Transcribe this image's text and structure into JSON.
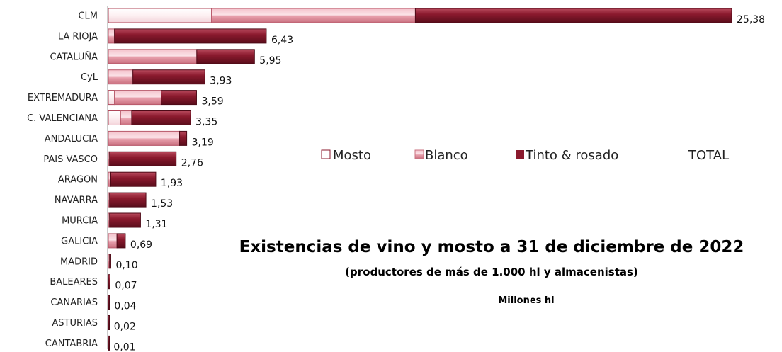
{
  "chart_data": {
    "type": "bar",
    "orientation": "horizontal",
    "stacked": true,
    "title": "Existencias de vino y mosto a 31 de diciembre de 2022",
    "subtitle": "(productores de más de 1.000 hl y almacenistas)",
    "unit_label": "Millones hl",
    "categories": [
      "CLM",
      "LA RIOJA",
      "CATALUÑA",
      "CyL",
      "EXTREMADURA",
      "C. VALENCIANA",
      "ANDALUCIA",
      "PAIS VASCO",
      "ARAGON",
      "NAVARRA",
      "MURCIA",
      "GALICIA",
      "MADRID",
      "BALEARES",
      "CANARIAS",
      "ASTURIAS",
      "CANTABRIA"
    ],
    "series": [
      {
        "name": "Mosto",
        "color": "#fdf0f2",
        "values": [
          4.2,
          0.0,
          0.0,
          0.0,
          0.25,
          0.5,
          0.0,
          0.0,
          0.0,
          0.0,
          0.0,
          0.0,
          0.0,
          0.0,
          0.0,
          0.0,
          0.0
        ]
      },
      {
        "name": "Blanco",
        "color": "#e8a0ad",
        "values": [
          8.3,
          0.25,
          3.6,
          1.0,
          1.9,
          0.45,
          2.9,
          0.05,
          0.1,
          0.05,
          0.05,
          0.35,
          0.05,
          0.0,
          0.0,
          0.0,
          0.0
        ]
      },
      {
        "name": "Tinto & rosado",
        "color": "#8b1a2e",
        "values": [
          12.88,
          6.18,
          2.35,
          2.93,
          1.44,
          2.4,
          0.29,
          2.71,
          1.83,
          1.48,
          1.26,
          0.34,
          0.05,
          0.07,
          0.04,
          0.02,
          0.01
        ]
      }
    ],
    "totals": [
      25.38,
      6.43,
      5.95,
      3.93,
      3.59,
      3.35,
      3.19,
      2.76,
      1.93,
      1.53,
      1.31,
      0.69,
      0.1,
      0.07,
      0.04,
      0.02,
      0.01
    ],
    "total_labels": [
      "25,38",
      "6,43",
      "5,95",
      "3,93",
      "3,59",
      "3,35",
      "3,19",
      "2,76",
      "1,93",
      "1,53",
      "1,31",
      "0,69",
      "0,10",
      "0,07",
      "0,04",
      "0,02",
      "0,01"
    ],
    "legend": [
      "Mosto",
      "Blanco",
      "Tinto & rosado",
      "TOTAL"
    ],
    "legend_position": "middle-right",
    "xlim": [
      0,
      26
    ],
    "grid": false
  }
}
